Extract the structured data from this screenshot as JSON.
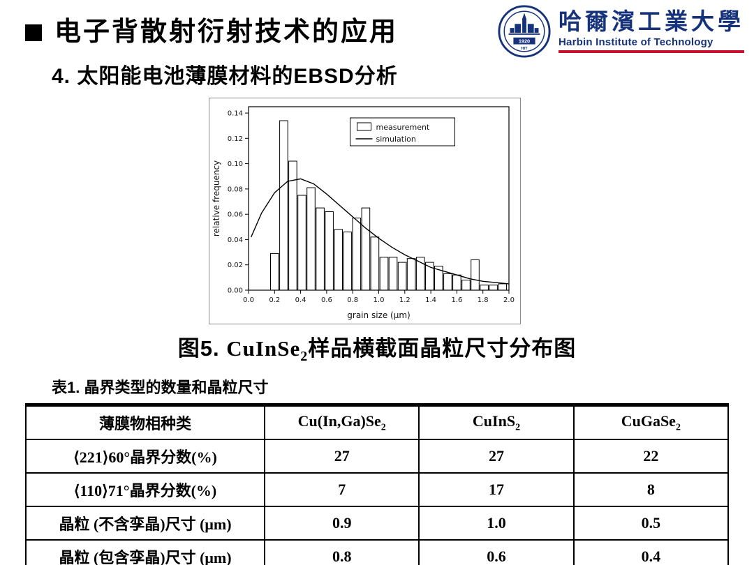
{
  "page": {
    "title": "电子背散射衍射技术的应用",
    "subtitle": "4. 太阳能电池薄膜材料的EBSD分析"
  },
  "logo": {
    "badge_year": "1920",
    "badge_abbr": "HIT",
    "university_cn": "哈爾濱工業大學",
    "university_en": "Harbin Institute of Technology",
    "accent_navy": "#15327b",
    "accent_red": "#c8102e"
  },
  "figure": {
    "caption_prefix": "图5. ",
    "caption_formula": "CuInSe",
    "caption_sub": "2",
    "caption_rest": "样品横截面晶粒尺寸分布图"
  },
  "table": {
    "caption": "表1. 晶界类型的数量和晶粒尺寸",
    "headers": [
      {
        "base": "薄膜物相种类",
        "sub": ""
      },
      {
        "base": "Cu(In,Ga)Se",
        "sub": "2"
      },
      {
        "base": "CuInS",
        "sub": "2"
      },
      {
        "base": "CuGaSe",
        "sub": "2"
      }
    ],
    "rows": [
      {
        "label": "⟨221⟩60°晶界分数(%)",
        "values": [
          "27",
          "27",
          "22"
        ]
      },
      {
        "label": "⟨110⟩71°晶界分数(%)",
        "values": [
          "7",
          "17",
          "8"
        ]
      },
      {
        "label": "晶粒 (不含孪晶)尺寸 (μm)",
        "values": [
          "0.9",
          "1.0",
          "0.5"
        ]
      },
      {
        "label": "晶粒 (包含孪晶)尺寸 (μm)",
        "values": [
          "0.8",
          "0.6",
          "0.4"
        ]
      }
    ]
  },
  "chart_data": {
    "type": "bar",
    "title": "",
    "xlabel": "grain size (μm)",
    "ylabel": "relative frequency",
    "xlim": [
      0.0,
      2.0
    ],
    "ylim": [
      0.0,
      0.145
    ],
    "x_ticks": [
      "0.0",
      "0.2",
      "0.4",
      "0.6",
      "0.8",
      "1.0",
      "1.2",
      "1.4",
      "1.6",
      "1.8",
      "2.0"
    ],
    "y_ticks": [
      "0.00",
      "0.02",
      "0.04",
      "0.06",
      "0.08",
      "0.10",
      "0.12",
      "0.14"
    ],
    "legend": [
      "measurement",
      "simulation"
    ],
    "legend_position": "upper right",
    "grid": false,
    "series": [
      {
        "name": "measurement",
        "type": "histogram",
        "bar_width": 0.062,
        "x": [
          0.2,
          0.27,
          0.34,
          0.41,
          0.48,
          0.55,
          0.62,
          0.69,
          0.76,
          0.83,
          0.9,
          0.97,
          1.04,
          1.11,
          1.18,
          1.25,
          1.32,
          1.39,
          1.46,
          1.53,
          1.6,
          1.67,
          1.74,
          1.81,
          1.88,
          1.95
        ],
        "values": [
          0.029,
          0.134,
          0.102,
          0.075,
          0.081,
          0.065,
          0.062,
          0.048,
          0.046,
          0.057,
          0.065,
          0.042,
          0.026,
          0.026,
          0.022,
          0.025,
          0.026,
          0.022,
          0.019,
          0.013,
          0.012,
          0.008,
          0.024,
          0.004,
          0.004,
          0.005
        ]
      },
      {
        "name": "simulation",
        "type": "line",
        "x": [
          0.02,
          0.1,
          0.2,
          0.3,
          0.4,
          0.5,
          0.6,
          0.7,
          0.8,
          0.9,
          1.0,
          1.1,
          1.2,
          1.3,
          1.4,
          1.5,
          1.6,
          1.7,
          1.8,
          1.9,
          2.0
        ],
        "y": [
          0.042,
          0.061,
          0.077,
          0.086,
          0.088,
          0.084,
          0.076,
          0.067,
          0.058,
          0.049,
          0.041,
          0.034,
          0.028,
          0.023,
          0.018,
          0.015,
          0.012,
          0.009,
          0.007,
          0.006,
          0.005
        ]
      }
    ]
  }
}
